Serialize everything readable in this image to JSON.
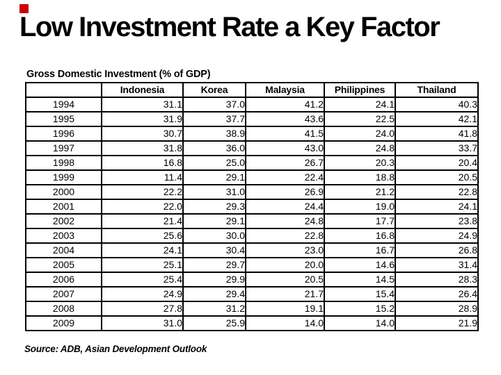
{
  "slide": {
    "title": "Low Investment Rate a Key Factor",
    "source_note": "Source: ADB, Asian Development Outlook"
  },
  "decor": {
    "red_square_color": "#cc0000"
  },
  "chart_data": {
    "type": "table",
    "title": "Gross Domestic Investment (% of GDP)",
    "columns": [
      "",
      "Indonesia",
      "Korea",
      "Malaysia",
      "Philippines",
      "Thailand"
    ],
    "rows": [
      [
        "1994",
        "31.1",
        "37.0",
        "41.2",
        "24.1",
        "40.3"
      ],
      [
        "1995",
        "31.9",
        "37.7",
        "43.6",
        "22.5",
        "42.1"
      ],
      [
        "1996",
        "30.7",
        "38.9",
        "41.5",
        "24.0",
        "41.8"
      ],
      [
        "1997",
        "31.8",
        "36.0",
        "43.0",
        "24.8",
        "33.7"
      ],
      [
        "1998",
        "16.8",
        "25.0",
        "26.7",
        "20.3",
        "20.4"
      ],
      [
        "1999",
        "11.4",
        "29.1",
        "22.4",
        "18.8",
        "20.5"
      ],
      [
        "2000",
        "22.2",
        "31.0",
        "26.9",
        "21.2",
        "22.8"
      ],
      [
        "2001",
        "22.0",
        "29.3",
        "24.4",
        "19.0",
        "24.1"
      ],
      [
        "2002",
        "21.4",
        "29.1",
        "24.8",
        "17.7",
        "23.8"
      ],
      [
        "2003",
        "25.6",
        "30.0",
        "22.8",
        "16.8",
        "24.9"
      ],
      [
        "2004",
        "24.1",
        "30.4",
        "23.0",
        "16.7",
        "26.8"
      ],
      [
        "2005",
        "25.1",
        "29.7",
        "20.0",
        "14.6",
        "31.4"
      ],
      [
        "2006",
        "25.4",
        "29.9",
        "20.5",
        "14.5",
        "28.3"
      ],
      [
        "2007",
        "24.9",
        "29.4",
        "21.7",
        "15.4",
        "26.4"
      ],
      [
        "2008",
        "27.8",
        "31.2",
        "19.1",
        "15.2",
        "28.9"
      ],
      [
        "2009",
        "31.0",
        "25.9",
        "14.0",
        "14.0",
        "21.9"
      ]
    ],
    "source": "Source: ADB, Asian Development Outlook",
    "layout_hints": {
      "header_bold": true,
      "year_column_align": "center",
      "value_align": "right",
      "grid": "all-borders-black"
    }
  }
}
